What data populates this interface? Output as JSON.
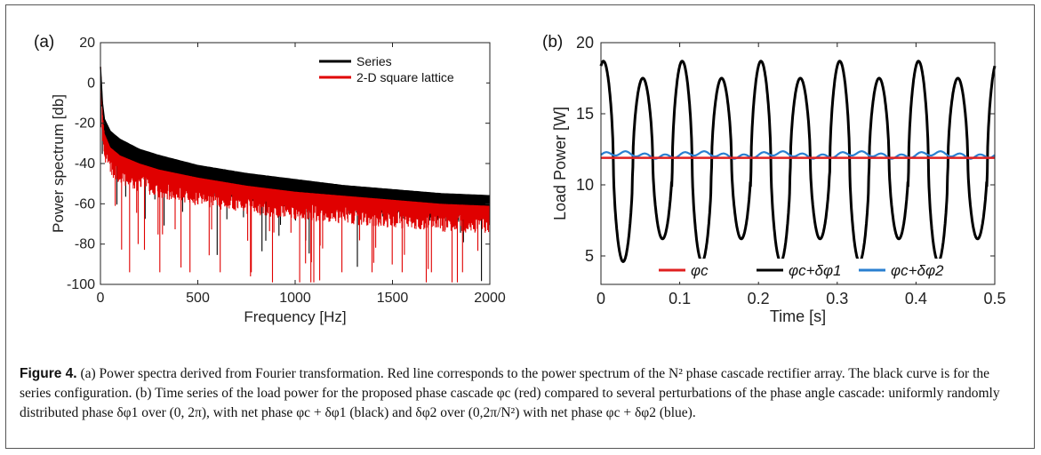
{
  "figure": {
    "panel_a_label": "(a)",
    "panel_b_label": "(b)"
  },
  "caption": {
    "label": "Figure 4.",
    "text": "(a) Power spectra derived from Fourier transformation. Red line corresponds to the power spectrum of the N² phase cascade rectifier array. The black curve is for the series configuration. (b) Time series of the load power for the proposed phase cascade φc (red) compared to several perturbations of the phase angle cascade: uniformly randomly distributed phase δφ1 over (0, 2π), with net phase φc + δφ1 (black) and δφ2 over (0,2π/N²) with net phase φc + δφ2 (blue)."
  },
  "chart_data": [
    {
      "type": "line",
      "panel": "(a)",
      "xlabel": "Frequency [Hz]",
      "ylabel": "Power spectrum [db]",
      "xlim": [
        0,
        2000
      ],
      "ylim": [
        -100,
        20
      ],
      "xticks": [
        "0",
        "500",
        "1000",
        "1500",
        "2000"
      ],
      "yticks": [
        "20",
        "0",
        "-20",
        "-40",
        "-60",
        "-80",
        "-100"
      ],
      "legend_position": "top-right",
      "series": [
        {
          "name": "Series",
          "color": "#000000",
          "x": [
            0,
            5,
            10,
            20,
            50,
            100,
            200,
            300,
            500,
            750,
            1000,
            1250,
            1500,
            1750,
            2000
          ],
          "y": [
            8,
            0,
            -10,
            -18,
            -24,
            -28,
            -33,
            -36,
            -41,
            -45,
            -48,
            -51,
            -53,
            -55,
            -56
          ]
        },
        {
          "name": "2-D square lattice",
          "color": "#e00000",
          "x": [
            0,
            5,
            10,
            20,
            50,
            100,
            200,
            300,
            500,
            750,
            1000,
            1250,
            1500,
            1750,
            2000
          ],
          "y": [
            10,
            0,
            -15,
            -25,
            -32,
            -36,
            -40,
            -43,
            -47,
            -51,
            -54,
            -56,
            -58,
            -60,
            -61
          ]
        }
      ]
    },
    {
      "type": "line",
      "panel": "(b)",
      "xlabel": "Time [s]",
      "ylabel": "Load Power [W]",
      "xlim": [
        0,
        0.5
      ],
      "ylim": [
        3,
        20
      ],
      "xticks": [
        "0",
        "0.1",
        "0.2",
        "0.3",
        "0.4",
        "0.5"
      ],
      "yticks": [
        "20",
        "15",
        "10",
        "5"
      ],
      "legend_position": "bottom",
      "series": [
        {
          "name": "φc",
          "color": "#e02020",
          "description_value": 11.9
        },
        {
          "name": "φc+δφ1",
          "color": "#000000",
          "peak_high": 18.7,
          "peak_low": 17.5,
          "trough_low": 4.6,
          "trough_high": 6.2,
          "period": 0.1
        },
        {
          "name": "φc+δφ2",
          "color": "#2a7fd0",
          "description_value": 12.1
        }
      ]
    }
  ]
}
